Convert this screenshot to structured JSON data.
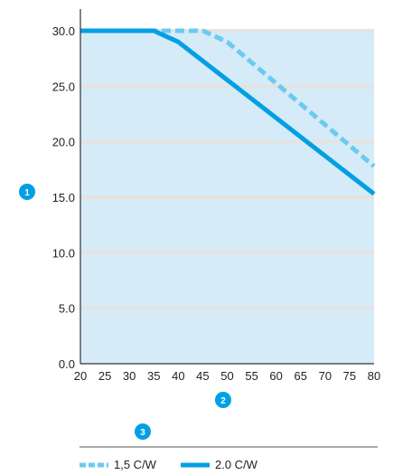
{
  "chart_data": {
    "type": "line",
    "xlim": [
      20,
      80
    ],
    "ylim": [
      0,
      30
    ],
    "x_ticks": [
      "20",
      "25",
      "30",
      "35",
      "40",
      "45",
      "50",
      "55",
      "60",
      "65",
      "70",
      "75",
      "80"
    ],
    "y_ticks": [
      "0.0",
      "5.0",
      "10.0",
      "15.0",
      "20.0",
      "25.0",
      "30.0"
    ],
    "grid": true,
    "plot_background": "#d5ebf7",
    "grid_color": "#e3e3e3",
    "ylabel_marker": "1",
    "xlabel_marker": "2",
    "legend_marker": "3",
    "marker_color": "#00a0e3",
    "series": [
      {
        "name": "1,5 C/W",
        "style": "dashed",
        "color": "#6ccaf0",
        "x": [
          20,
          45,
          50,
          80
        ],
        "y": [
          30,
          30,
          29,
          17.8
        ]
      },
      {
        "name": "2.0 C/W",
        "style": "solid",
        "color": "#00a0e3",
        "x": [
          20,
          35,
          40,
          80
        ],
        "y": [
          30,
          30,
          29,
          15.3
        ]
      }
    ],
    "legend_position": "bottom-left"
  }
}
